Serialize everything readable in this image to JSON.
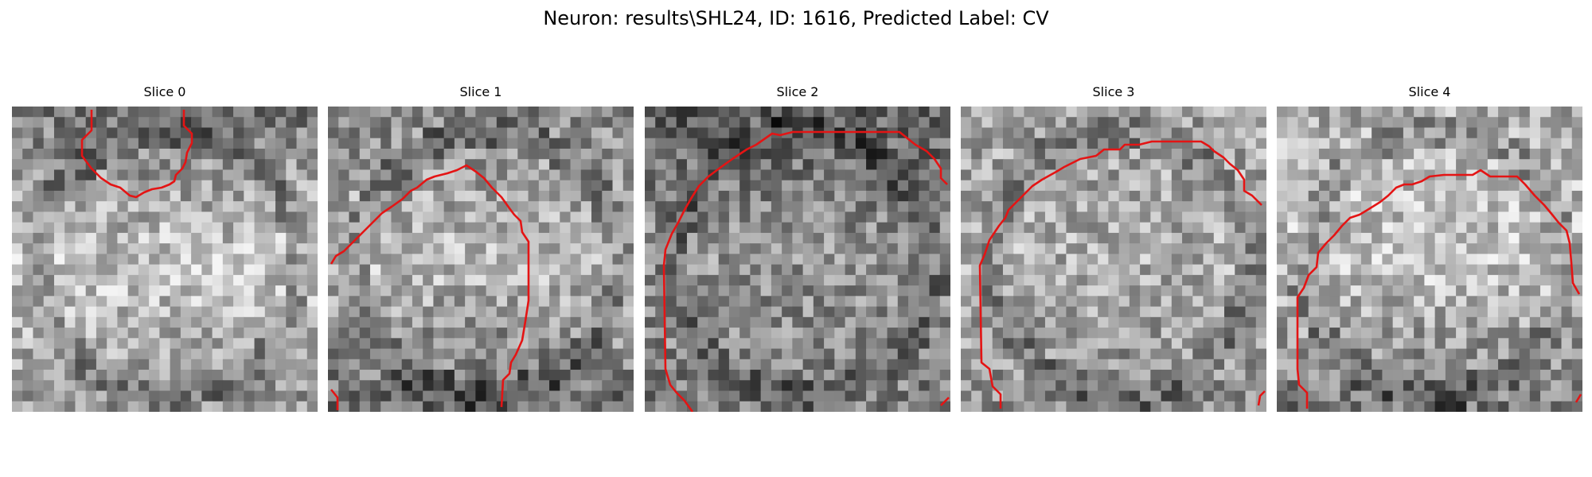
{
  "figure": {
    "title": "Neuron: results\\SHL24, ID: 1616, Predicted Label: CV",
    "grid": 29,
    "contour_color": "#e41414",
    "panels": [
      {
        "title": "Slice 0",
        "seed": 11,
        "base": [
          120,
          200,
          150
        ]
      },
      {
        "title": "Slice 1",
        "seed": 23,
        "base": [
          135,
          190,
          110
        ]
      },
      {
        "title": "Slice 2",
        "seed": 37,
        "base": [
          95,
          150,
          125
        ]
      },
      {
        "title": "Slice 3",
        "seed": 51,
        "base": [
          160,
          175,
          140
        ]
      },
      {
        "title": "Slice 4",
        "seed": 67,
        "base": [
          175,
          200,
          120
        ]
      }
    ]
  }
}
